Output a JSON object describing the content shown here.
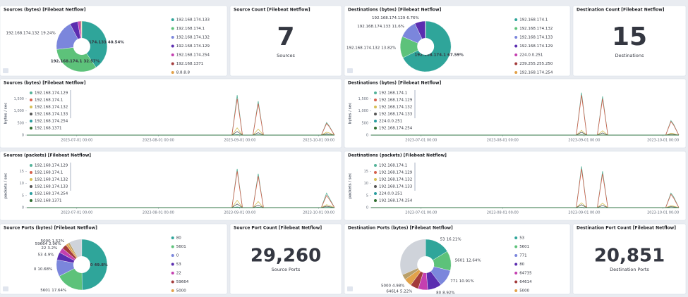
{
  "chart_data": [
    {
      "type": "pie",
      "title": "Sources (bytes) [Filebeat Netflow]",
      "categories": [
        "192.168.174.133",
        "192.168.174.1",
        "192.168.174.132",
        "192.168.174.129",
        "192.168.174.254",
        "192.168.1371",
        "8.8.8.8"
      ],
      "values": [
        40.54,
        32.57,
        19.24,
        5.1,
        1.6,
        0.6,
        0.35
      ],
      "value_labels": [
        "40.54%",
        "32.57%",
        "19.24%",
        null,
        null,
        null,
        null
      ],
      "colors": [
        "#2fa59a",
        "#5dc27a",
        "#7b86dc",
        "#5b2db0",
        "#c43fb0",
        "#a33b3b",
        "#e2a24a"
      ]
    },
    {
      "type": "pie",
      "title": "Destinations (bytes) [Filebeat Netflow]",
      "categories": [
        "192.168.174.1",
        "192.168.174.132",
        "192.168.174.133",
        "192.168.174.129",
        "224.0.0.251",
        "239.255.255.250",
        "192.168.174.254",
        "192.168.174.130"
      ],
      "values": [
        67.59,
        13.82,
        11.6,
        6.76,
        0.1,
        0.06,
        0.04,
        0.03
      ],
      "value_labels": [
        "67.59%",
        "13.82%",
        "11.6%",
        "6.76%",
        null,
        null,
        null,
        null
      ],
      "colors": [
        "#2fa59a",
        "#5dc27a",
        "#7b86dc",
        "#5b2db0",
        "#c43fb0",
        "#a33b3b",
        "#e2a24a",
        "#b9a06a"
      ]
    },
    {
      "type": "line",
      "title": "Sources (bytes) [Filebeat Netflow]",
      "y_label": "bytes / sec",
      "x": [
        "2023-06-12",
        "2023-08-29",
        "2023-08-31",
        "2023-09-02",
        "2023-09-06",
        "2023-09-08",
        "2023-09-10",
        "2023-10-02",
        "2023-10-04",
        "2023-10-05",
        "2023-10-07"
      ],
      "xlim": [
        "2023-06-12",
        "2023-10-07"
      ],
      "xticks": [
        {
          "value": "2023-07-01",
          "label": "2023-07-01 00:00"
        },
        {
          "value": "2023-08-01",
          "label": "2023-08-01 00:00"
        },
        {
          "value": "2023-09-01",
          "label": "2023-09-01 00:00"
        },
        {
          "value": "2023-10-01",
          "label": "2023-10-01 00:00"
        }
      ],
      "ylim": [
        0,
        1800
      ],
      "yticks": [
        0,
        500,
        {
          "value": 1000,
          "label": "1,000"
        },
        {
          "value": 1500,
          "label": "1,500"
        }
      ],
      "series": [
        {
          "name": "192.168.174.129",
          "color": "#54b399",
          "values": [
            0,
            0,
            1650,
            0,
            0,
            1400,
            0,
            0,
            520,
            380,
            0
          ]
        },
        {
          "name": "192.168.174.1",
          "color": "#d6604d",
          "values": [
            0,
            0,
            1500,
            0,
            0,
            1300,
            0,
            0,
            480,
            350,
            0
          ]
        },
        {
          "name": "192.168.174.132",
          "color": "#d6bf57",
          "values": [
            0,
            0,
            300,
            0,
            0,
            250,
            0,
            0,
            120,
            90,
            0
          ]
        },
        {
          "name": "192.168.174.133",
          "color": "#555555",
          "values": [
            0,
            0,
            150,
            0,
            0,
            100,
            0,
            0,
            60,
            40,
            0
          ]
        },
        {
          "name": "192.168.174.254",
          "color": "#2a9d9f",
          "values": [
            0,
            0,
            20,
            0,
            0,
            15,
            0,
            0,
            10,
            5,
            0
          ]
        },
        {
          "name": "192.168.1371",
          "color": "#2f6e2f",
          "values": [
            0,
            0,
            5,
            0,
            0,
            4,
            0,
            0,
            2,
            1,
            0
          ]
        }
      ]
    },
    {
      "type": "line",
      "title": "Destinations (bytes) [Filebeat Netflow]",
      "y_label": "bytes / sec",
      "x": [
        "2023-06-12",
        "2023-08-29",
        "2023-08-31",
        "2023-09-02",
        "2023-09-06",
        "2023-09-08",
        "2023-09-10",
        "2023-10-02",
        "2023-10-04",
        "2023-10-05",
        "2023-10-07"
      ],
      "xlim": [
        "2023-06-12",
        "2023-10-07"
      ],
      "xticks": [
        {
          "value": "2023-07-01",
          "label": "2023-07-01 00:00"
        },
        {
          "value": "2023-08-01",
          "label": "2023-08-01 00:00"
        },
        {
          "value": "2023-09-01",
          "label": "2023-09-01 00:00"
        },
        {
          "value": "2023-10-01",
          "label": "2023-10-01 00:00"
        }
      ],
      "ylim": [
        0,
        1800
      ],
      "yticks": [
        0,
        500,
        {
          "value": 1000,
          "label": "1,000"
        },
        {
          "value": 1500,
          "label": "1,500"
        }
      ],
      "series": [
        {
          "name": "192.168.174.1",
          "color": "#54b399",
          "values": [
            0,
            0,
            1750,
            0,
            0,
            1600,
            0,
            0,
            600,
            450,
            0
          ]
        },
        {
          "name": "192.168.174.129",
          "color": "#d6604d",
          "values": [
            0,
            0,
            1650,
            0,
            0,
            1500,
            0,
            0,
            560,
            420,
            0
          ]
        },
        {
          "name": "192.168.174.132",
          "color": "#d6bf57",
          "values": [
            0,
            0,
            200,
            0,
            0,
            180,
            0,
            0,
            80,
            60,
            0
          ]
        },
        {
          "name": "192.168.174.133",
          "color": "#555555",
          "values": [
            0,
            0,
            120,
            0,
            0,
            90,
            0,
            0,
            40,
            30,
            0
          ]
        },
        {
          "name": "224.0.0.251",
          "color": "#2a9d9f",
          "values": [
            0,
            0,
            10,
            0,
            0,
            8,
            0,
            0,
            4,
            3,
            0
          ]
        },
        {
          "name": "192.168.174.254",
          "color": "#2f6e2f",
          "values": [
            0,
            0,
            5,
            0,
            0,
            4,
            0,
            0,
            2,
            1,
            0
          ]
        }
      ]
    },
    {
      "type": "line",
      "title": "Sources (packets) [Filebeat Netflow]",
      "y_label": "packets / sec",
      "x": [
        "2023-06-12",
        "2023-08-29",
        "2023-08-31",
        "2023-09-02",
        "2023-09-06",
        "2023-09-08",
        "2023-09-10",
        "2023-10-02",
        "2023-10-04",
        "2023-10-05",
        "2023-10-07"
      ],
      "xlim": [
        "2023-06-12",
        "2023-10-07"
      ],
      "xticks": [
        {
          "value": "2023-07-01",
          "label": "2023-07-01 00:00"
        },
        {
          "value": "2023-08-01",
          "label": "2023-08-01 00:00"
        },
        {
          "value": "2023-09-01",
          "label": "2023-09-01 00:00"
        },
        {
          "value": "2023-10-01",
          "label": "2023-10-01 00:00"
        }
      ],
      "ylim": [
        0,
        18
      ],
      "yticks": [
        0,
        5,
        10,
        15
      ],
      "series": [
        {
          "name": "192.168.174.129",
          "color": "#54b399",
          "values": [
            0,
            0,
            16,
            0,
            0,
            14,
            0,
            0,
            6,
            4,
            0
          ]
        },
        {
          "name": "192.168.174.1",
          "color": "#d6604d",
          "values": [
            0,
            0,
            15,
            0,
            0,
            13,
            0,
            0,
            5,
            3.5,
            0
          ]
        },
        {
          "name": "192.168.174.132",
          "color": "#d6bf57",
          "values": [
            0,
            0,
            3,
            0,
            0,
            2.5,
            0,
            0,
            1.2,
            0.9,
            0
          ]
        },
        {
          "name": "192.168.174.133",
          "color": "#555555",
          "values": [
            0,
            0,
            1.5,
            0,
            0,
            1,
            0,
            0,
            0.6,
            0.4,
            0
          ]
        },
        {
          "name": "192.168.174.254",
          "color": "#2a9d9f",
          "values": [
            0,
            0,
            0.3,
            0,
            0,
            0.2,
            0,
            0,
            0.1,
            0.1,
            0
          ]
        },
        {
          "name": "192.168.1371",
          "color": "#2f6e2f",
          "values": [
            0,
            0,
            0.1,
            0,
            0,
            0.1,
            0,
            0,
            0,
            0,
            0
          ]
        }
      ]
    },
    {
      "type": "line",
      "title": "Destinations (packets) [Filebeat Netflow]",
      "y_label": "packets / sec",
      "x": [
        "2023-06-12",
        "2023-08-29",
        "2023-08-31",
        "2023-09-02",
        "2023-09-06",
        "2023-09-08",
        "2023-09-10",
        "2023-10-02",
        "2023-10-04",
        "2023-10-05",
        "2023-10-07"
      ],
      "xlim": [
        "2023-06-12",
        "2023-10-07"
      ],
      "xticks": [
        {
          "value": "2023-07-01",
          "label": "2023-07-01 00:00"
        },
        {
          "value": "2023-08-01",
          "label": "2023-08-01 00:00"
        },
        {
          "value": "2023-09-01",
          "label": "2023-09-01 00:00"
        },
        {
          "value": "2023-10-01",
          "label": "2023-10-01 00:00"
        }
      ],
      "ylim": [
        0,
        18
      ],
      "yticks": [
        0,
        5,
        10,
        15
      ],
      "series": [
        {
          "name": "192.168.174.1",
          "color": "#54b399",
          "values": [
            0,
            0,
            17,
            0,
            0,
            15,
            0,
            0,
            6,
            4.5,
            0
          ]
        },
        {
          "name": "192.168.174.129",
          "color": "#d6604d",
          "values": [
            0,
            0,
            16,
            0,
            0,
            14,
            0,
            0,
            5.5,
            4,
            0
          ]
        },
        {
          "name": "192.168.174.132",
          "color": "#d6bf57",
          "values": [
            0,
            0,
            2,
            0,
            0,
            1.8,
            0,
            0,
            0.8,
            0.6,
            0
          ]
        },
        {
          "name": "192.168.174.133",
          "color": "#555555",
          "values": [
            0,
            0,
            1.2,
            0,
            0,
            0.9,
            0,
            0,
            0.4,
            0.3,
            0
          ]
        },
        {
          "name": "224.0.0.251",
          "color": "#2a9d9f",
          "values": [
            0,
            0,
            0.1,
            0,
            0,
            0.1,
            0,
            0,
            0,
            0,
            0
          ]
        },
        {
          "name": "192.168.174.254",
          "color": "#2f6e2f",
          "values": [
            0,
            0,
            0.1,
            0,
            0,
            0,
            0,
            0,
            0,
            0,
            0
          ]
        }
      ]
    },
    {
      "type": "pie",
      "title": "Source Ports (bytes) [Filebeat Netflow]",
      "categories": [
        "80",
        "5601",
        "0",
        "53",
        "22",
        "59664",
        "5000",
        "64337"
      ],
      "values": [
        49.8,
        17.64,
        10.68,
        4.9,
        3.2,
        2.96,
        1.52,
        1.2
      ],
      "value_labels": [
        "49.8%",
        "17.64%",
        "10.68%",
        "4.9%",
        "3.2%",
        "2.96%",
        "1.52%",
        null
      ],
      "colors": [
        "#2fa59a",
        "#5dc27a",
        "#7b86dc",
        "#5b2db0",
        "#c43fb0",
        "#a33b3b",
        "#e2a24a",
        "#b9a06a"
      ]
    },
    {
      "type": "pie",
      "title": "Destination Ports (bytes) [Filebeat Netflow]",
      "categories": [
        "53",
        "5601",
        "771",
        "80",
        "64735",
        "64614",
        "5000",
        "61890"
      ],
      "values": [
        16.21,
        12.64,
        10.91,
        8.92,
        6.1,
        5.22,
        4.98,
        3.4
      ],
      "value_labels": [
        "16.21%",
        "12.64%",
        "10.91%",
        "8.92%",
        null,
        "5.22%",
        "4.98%",
        null
      ],
      "colors": [
        "#2fa59a",
        "#5dc27a",
        "#7b86dc",
        "#5b2db0",
        "#c43fb0",
        "#a33b3b",
        "#e2a24a",
        "#b9a06a"
      ]
    }
  ],
  "metrics": [
    {
      "title": "Source Count [Filebeat Netflow]",
      "value": 7,
      "label": "Sources"
    },
    {
      "title": "Destination Count [Filebeat Netflow]",
      "value": 15,
      "label": "Destinations"
    },
    {
      "title": "Source Port Count [Filebeat Netflow]",
      "value": 29260,
      "value_label": "29,260",
      "label": "Source Ports"
    },
    {
      "title": "Destination Port Count [Filebeat Netflow]",
      "value": 20851,
      "value_label": "20,851",
      "label": "Destination Ports"
    }
  ]
}
